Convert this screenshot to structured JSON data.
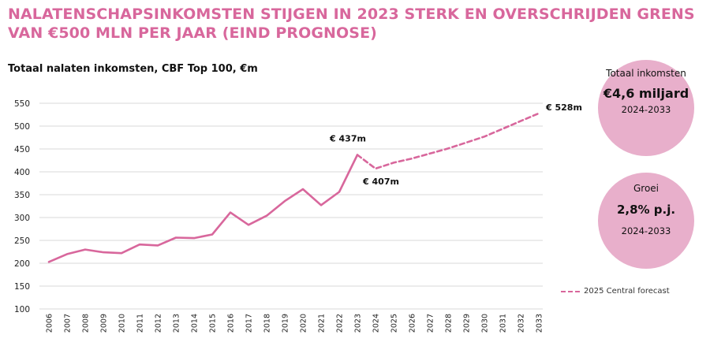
{
  "title": "NALATENSCHAPSINKOMSTEN STIJGEN IN 2023 STERK EN OVERSCHRIJDEN GRENS VAN €500 MLN PER JAAR (EIND PROGNOSE)",
  "colors": {
    "accent": "#d8679c",
    "circle": "#e8afcb",
    "grid": "#d9d9d9"
  },
  "chart_data": {
    "type": "line",
    "title": "Totaal nalaten inkomsten, CBF Top 100, €m",
    "xlabel": "",
    "ylabel": "",
    "ylim": [
      100,
      550
    ],
    "yticks": [
      100,
      150,
      200,
      250,
      300,
      350,
      400,
      450,
      500,
      550
    ],
    "grid": true,
    "x": [
      "2006",
      "2007",
      "2008",
      "2009",
      "2010",
      "2011",
      "2012",
      "2013",
      "2014",
      "2015",
      "2016",
      "2017",
      "2018",
      "2019",
      "2020",
      "2021",
      "2022",
      "2023",
      "2024",
      "2025",
      "2026",
      "2027",
      "2028",
      "2029",
      "2030",
      "2031",
      "2032",
      "2033"
    ],
    "series": [
      {
        "name": "",
        "style": "solid",
        "x": [
          "2006",
          "2007",
          "2008",
          "2009",
          "2010",
          "2011",
          "2012",
          "2013",
          "2014",
          "2015",
          "2016",
          "2017",
          "2018",
          "2019",
          "2020",
          "2021",
          "2022",
          "2023"
        ],
        "values": [
          203,
          220,
          230,
          224,
          222,
          241,
          239,
          256,
          255,
          263,
          311,
          284,
          304,
          336,
          362,
          327,
          356,
          437
        ]
      },
      {
        "name": "2025 Central forecast",
        "style": "dashed",
        "x": [
          "2023",
          "2024",
          "2025",
          "2026",
          "2027",
          "2028",
          "2029",
          "2030",
          "2031",
          "2032",
          "2033"
        ],
        "values": [
          437,
          407,
          420,
          429,
          440,
          451,
          464,
          477,
          494,
          511,
          528
        ]
      }
    ],
    "annotations": [
      {
        "x": "2023",
        "y": 437,
        "text": "€ 437m",
        "position": "above"
      },
      {
        "x": "2024",
        "y": 407,
        "text": "€ 407m",
        "position": "below"
      },
      {
        "x": "2033",
        "y": 528,
        "text": "€ 528m",
        "position": "right"
      }
    ],
    "legend": {
      "position": "bottom-right",
      "entries": [
        "2025 Central forecast"
      ]
    }
  },
  "circles": [
    {
      "label": "Totaal inkomsten",
      "value": "€4,6 miljard",
      "period": "2024-2033"
    },
    {
      "label": "Groei",
      "value": "2,8% p.j.",
      "period": "2024-2033"
    }
  ],
  "legend": {
    "label": "2025 Central forecast"
  }
}
